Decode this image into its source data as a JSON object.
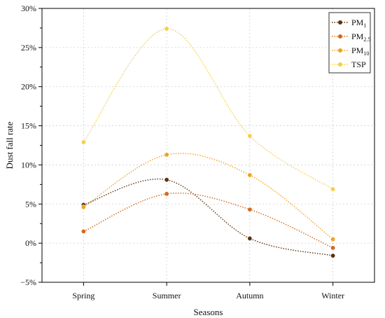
{
  "chart_data": {
    "type": "line",
    "title": "",
    "xlabel": "Seasons",
    "ylabel": "Dust fall rate",
    "categories": [
      "Spring",
      "Summer",
      "Autumn",
      "Winter"
    ],
    "ylim": [
      -5,
      30
    ],
    "yticks": [
      -5,
      0,
      5,
      10,
      15,
      20,
      25,
      30
    ],
    "ytick_labels": [
      "−5%",
      "0%",
      "5%",
      "10%",
      "15%",
      "20%",
      "25%",
      "30%"
    ],
    "grid": true,
    "legend_position": "top-right",
    "series": [
      {
        "name": "PM",
        "name_sub": "1",
        "color": "#5a3310",
        "values": [
          4.9,
          8.1,
          0.6,
          -1.6
        ]
      },
      {
        "name": "PM",
        "name_sub": "2.5",
        "color": "#d2691e",
        "values": [
          1.5,
          6.3,
          4.3,
          -0.6
        ]
      },
      {
        "name": "PM",
        "name_sub": "10",
        "color": "#f0a21e",
        "values": [
          4.6,
          11.3,
          8.7,
          0.5
        ]
      },
      {
        "name": "TSP",
        "name_sub": "",
        "color": "#f5cf45",
        "values": [
          12.9,
          27.4,
          13.7,
          6.9
        ]
      }
    ]
  }
}
